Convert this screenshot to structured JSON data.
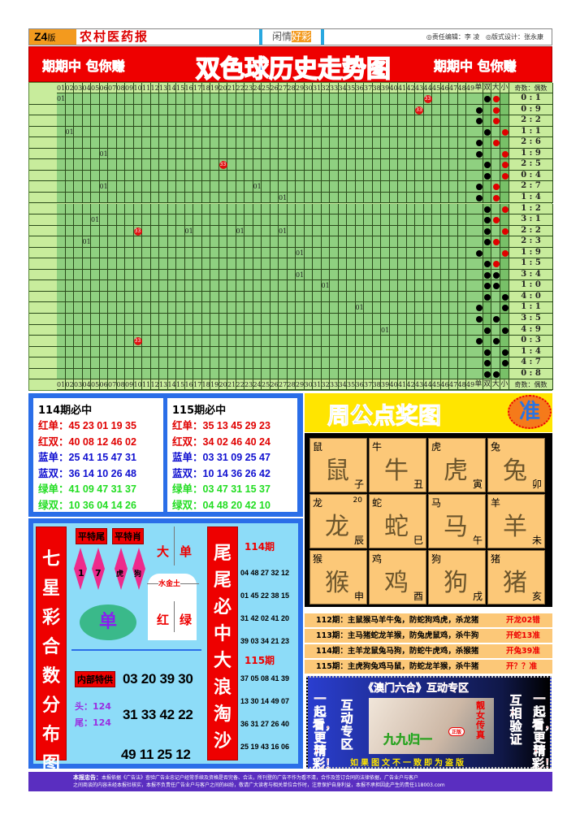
{
  "header": {
    "edition": "Z4",
    "edition_suffix": "版",
    "paper_name": "农村医药报",
    "column_a": "闲情",
    "column_b": "好彩",
    "editor": "◎责任编辑：李 凌",
    "designer": "◎版式设计：张永康"
  },
  "banner": {
    "left": "期期中 包你赚",
    "title": "双色球历史走势图",
    "right": "期期中 包你赚"
  },
  "trend": {
    "numbers": [
      "01",
      "02",
      "03",
      "04",
      "05",
      "06",
      "07",
      "08",
      "09",
      "10",
      "11",
      "12",
      "13",
      "14",
      "15",
      "16",
      "17",
      "18",
      "19",
      "20",
      "21",
      "22",
      "23",
      "24",
      "25",
      "26",
      "27",
      "28",
      "29",
      "30",
      "31",
      "32",
      "33",
      "34",
      "35",
      "36",
      "37",
      "38",
      "39",
      "40",
      "41",
      "42",
      "43",
      "44",
      "45",
      "46",
      "47",
      "48",
      "49"
    ],
    "right_headers": [
      "单",
      "双",
      "大",
      "小",
      "奇数：偶数"
    ],
    "marks": [
      {
        "row": 0,
        "col": 1,
        "label": "01",
        "type": "text"
      },
      {
        "row": 0,
        "col": 44,
        "label": "33",
        "type": "ball"
      },
      {
        "row": 1,
        "col": 43,
        "label": "33",
        "type": "ball"
      },
      {
        "row": 3,
        "col": 2,
        "label": "01",
        "type": "text"
      },
      {
        "row": 5,
        "col": 6,
        "label": "01",
        "type": "text"
      },
      {
        "row": 6,
        "col": 20,
        "label": "33",
        "type": "ball"
      },
      {
        "row": 8,
        "col": 6,
        "label": "01",
        "type": "text"
      },
      {
        "row": 8,
        "col": 24,
        "label": "01",
        "type": "text"
      },
      {
        "row": 9,
        "col": 27,
        "label": "01",
        "type": "text"
      },
      {
        "row": 11,
        "col": 5,
        "label": "01",
        "type": "text"
      },
      {
        "row": 12,
        "col": 10,
        "label": "33",
        "type": "ball"
      },
      {
        "row": 12,
        "col": 16,
        "label": "01",
        "type": "text"
      },
      {
        "row": 12,
        "col": 22,
        "label": "01",
        "type": "text"
      },
      {
        "row": 12,
        "col": 27,
        "label": "01",
        "type": "text"
      },
      {
        "row": 13,
        "col": 4,
        "label": "01",
        "type": "text"
      },
      {
        "row": 14,
        "col": 29,
        "label": "01",
        "type": "text"
      },
      {
        "row": 16,
        "col": 29,
        "label": "01",
        "type": "text"
      },
      {
        "row": 17,
        "col": 32,
        "label": "01",
        "type": "text"
      },
      {
        "row": 19,
        "col": 36,
        "label": "01",
        "type": "text"
      },
      {
        "row": 21,
        "col": 39,
        "label": "01",
        "type": "text"
      },
      {
        "row": 22,
        "col": 10,
        "label": "33",
        "type": "ball"
      }
    ],
    "rows": [
      {
        "oe": "双",
        "bs": "大",
        "dot": "#e00000",
        "ratio": "0 : 1"
      },
      {
        "oe": "单",
        "bs": "大",
        "dot": "#e00000",
        "ratio": "0 : 9"
      },
      {
        "oe": "单",
        "bs": "大",
        "dot": "#e00000",
        "ratio": "2 : 2"
      },
      {
        "oe": "双",
        "bs": "小",
        "dot": "#e00000",
        "ratio": "1 : 1"
      },
      {
        "oe": "单",
        "bs": "大",
        "dot": "#e00000",
        "ratio": "2 : 6"
      },
      {
        "oe": "单",
        "bs": "小",
        "dot": "#e00000",
        "ratio": "1 : 9"
      },
      {
        "oe": "双",
        "bs": "小",
        "dot": "#e00000",
        "ratio": "2 : 5"
      },
      {
        "oe": "双",
        "bs": "小",
        "dot": "#e00000",
        "ratio": "0 : 4"
      },
      {
        "oe": "单",
        "bs": "大",
        "dot": "#e00000",
        "ratio": "2 : 7"
      },
      {
        "oe": "单",
        "bs": "大",
        "dot": "#e00000",
        "ratio": "1 : 4"
      },
      {
        "oe": "双",
        "bs": "小",
        "dot": "#e00000",
        "ratio": "1 : 2"
      },
      {
        "oe": "双",
        "bs": "大",
        "dot": "#e00000",
        "ratio": "3 : 1"
      },
      {
        "oe": "双",
        "bs": "小",
        "dot": "#e00000",
        "ratio": "2 : 2"
      },
      {
        "oe": "双",
        "bs": "大",
        "dot": "#e00000",
        "ratio": "2 : 3"
      },
      {
        "oe": "单",
        "bs": "小",
        "dot": "#e00000",
        "ratio": "1 : 9"
      },
      {
        "oe": "双",
        "bs": "大",
        "dot": "#e00000",
        "ratio": "1 : 5"
      },
      {
        "oe": "双",
        "bs": "大",
        "dot": "#000000",
        "ratio": "3 : 4"
      },
      {
        "oe": "双",
        "bs": "大",
        "dot": "#000000",
        "ratio": "1 : 0"
      },
      {
        "oe": "双",
        "bs": "小",
        "dot": "#000000",
        "ratio": "4 : 0"
      },
      {
        "oe": "单",
        "bs": "小",
        "dot": "#000000",
        "ratio": "1 : 1"
      },
      {
        "oe": "单",
        "bs": "大",
        "dot": "#000000",
        "ratio": "3 : 5"
      },
      {
        "oe": "双",
        "bs": "小",
        "dot": "#000000",
        "ratio": "4 : 9"
      },
      {
        "oe": "单",
        "bs": "大",
        "dot": "#000000",
        "ratio": "0 : 3"
      },
      {
        "oe": "双",
        "bs": "小",
        "dot": "#000000",
        "ratio": "1 : 4"
      },
      {
        "oe": "双",
        "bs": "小",
        "dot": "#000000",
        "ratio": "4 : 7"
      },
      {
        "oe": "双",
        "bs": "大",
        "dot": "#000000",
        "ratio": "0 : 8"
      }
    ]
  },
  "picks": [
    {
      "title": "114期必中",
      "lines": [
        {
          "label": "红单：",
          "nums": "45 23 01 19 35",
          "color": "#e00000"
        },
        {
          "label": "红双：",
          "nums": "40 08 12 46 02",
          "color": "#e00000"
        },
        {
          "label": "蓝单：",
          "nums": "25 41 15 47 31",
          "color": "#1010d0"
        },
        {
          "label": "蓝双：",
          "nums": "36 14 10 26 48",
          "color": "#1010d0"
        },
        {
          "label": "绿单：",
          "nums": "41 09 47 31 37",
          "color": "#22dd22"
        },
        {
          "label": "绿双：",
          "nums": "10 36 04 14 26",
          "color": "#22dd22"
        }
      ]
    },
    {
      "title": "115期必中",
      "lines": [
        {
          "label": "红单：",
          "nums": "35 13 45 29 23",
          "color": "#e00000"
        },
        {
          "label": "红双：",
          "nums": "34 02 46 40 24",
          "color": "#e00000"
        },
        {
          "label": "蓝单：",
          "nums": "03 31 09 25 47",
          "color": "#1010d0"
        },
        {
          "label": "蓝双：",
          "nums": "10 14 36 26 42",
          "color": "#1010d0"
        },
        {
          "label": "绿单：",
          "nums": "03 47 31 15 37",
          "color": "#22dd22"
        },
        {
          "label": "绿双：",
          "nums": "04 48 20 42 10",
          "color": "#22dd22"
        }
      ]
    }
  ],
  "qixing": {
    "title": "七星彩合数分布图",
    "tag_tail": "平特尾",
    "tag_zodiac": "平特肖",
    "tails": [
      "1",
      "7"
    ],
    "zodiacs": [
      "虎",
      "狗"
    ],
    "big": "大",
    "odd": "单",
    "elements": "水金土",
    "red": "红",
    "green": "绿",
    "oval": "单",
    "internal": "内部特供",
    "head": "头：124",
    "tail": "尾：124",
    "row1": "03 20 39 30",
    "row2": "31 33 42 22",
    "row3": "49 11 25 12"
  },
  "weiwei": {
    "title": "尾尾必中大浪淘沙",
    "p114": "114期",
    "list114": [
      "04 48 27 32 12",
      "01 45 22 38 15",
      "31 42 02 41 20",
      "39 03 34 21 23"
    ],
    "p115": "115期",
    "list115": [
      "37 05 08 41 39",
      "13 30 14 49 07",
      "36 31 27 26 40",
      "25 19 43 16 06"
    ]
  },
  "zhougong": {
    "title": "周公点奖图",
    "badge": "准",
    "zodiacs": [
      {
        "name": "鼠",
        "branch": "子"
      },
      {
        "name": "牛",
        "branch": "丑"
      },
      {
        "name": "虎",
        "branch": "寅"
      },
      {
        "name": "兔",
        "branch": "卯"
      },
      {
        "name": "龙",
        "branch": "辰",
        "num": "20"
      },
      {
        "name": "蛇",
        "branch": "巳"
      },
      {
        "name": "马",
        "branch": "午"
      },
      {
        "name": "羊",
        "branch": "未"
      },
      {
        "name": "猴",
        "branch": "申"
      },
      {
        "name": "鸡",
        "branch": "酉"
      },
      {
        "name": "狗",
        "branch": "戌"
      },
      {
        "name": "猪",
        "branch": "亥"
      }
    ],
    "results": [
      {
        "text": "112期：主鼠猴马羊牛兔，防蛇狗鸡虎，杀龙猪",
        "res": "开龙02错"
      },
      {
        "text": "113期：主马猪蛇龙羊猴，防兔虎鼠鸡，杀牛狗",
        "res": "开蛇13准"
      },
      {
        "text": "114期：主羊龙鼠兔马狗，防蛇牛虎鸡，杀猴猪",
        "res": "开兔39准"
      },
      {
        "text": "115期：主虎狗兔鸡马鼠，防蛇龙羊猴，杀牛猪",
        "res": "开？？准"
      }
    ]
  },
  "ad": {
    "title": "《澳门六合》互动专区",
    "left_outer": "一起看，更精彩！",
    "left_inner": "互动专区",
    "right_inner": "互相验证",
    "right_outer": "一起看，更精彩！",
    "photo_text": "靓女传真",
    "brand": "九九归一",
    "badge": "正版",
    "bottom": "如果图文不一致即为盗版"
  },
  "footer": {
    "label": "本报忠告：",
    "line1": "本报依据《广告法》查验广告业忠记户经常手续及资格是否完备、合法，所刊登的广告不作为看不清，合作及签订合同的法律依据，广告业户与客户",
    "line2": "之间商谈的内容未经本报社核实，本报不负责任广告业户与客户之间的纠纷，敬请广大读者与相关单位合作时，注意保护自身利益，本报不承担因此产生的责任118003.com"
  }
}
